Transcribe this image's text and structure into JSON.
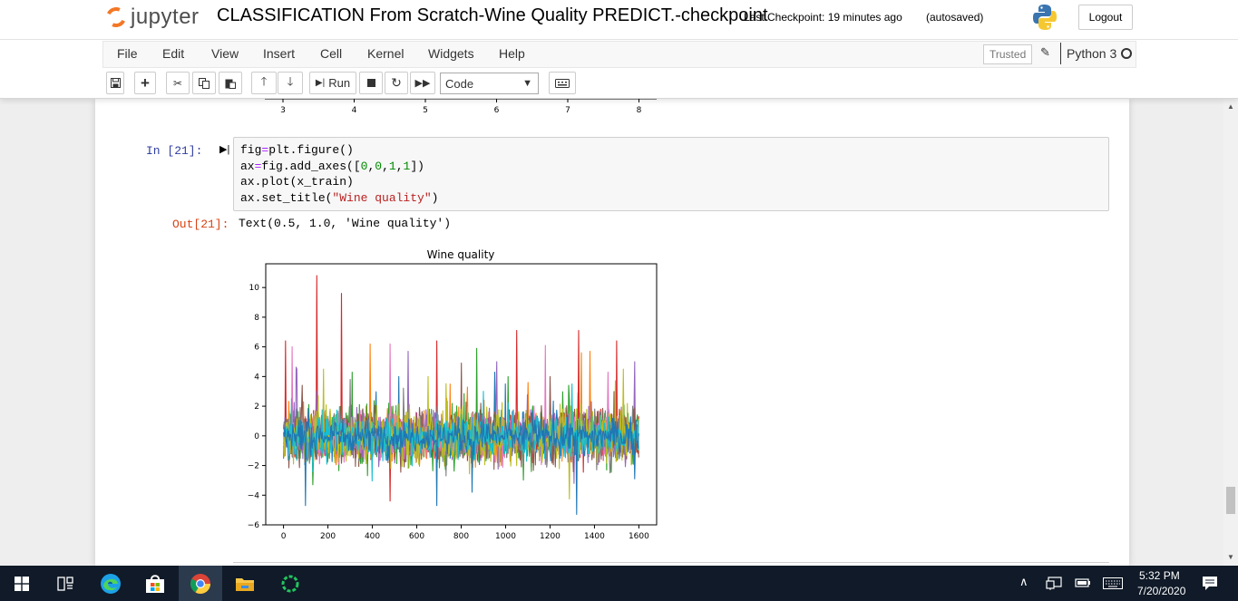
{
  "header": {
    "logo_text": "jupyter",
    "notebook_title": "CLASSIFICATION From Scratch-Wine Quality PREDICT.-checkpoint",
    "checkpoint": "Last Checkpoint: 19 minutes ago",
    "autosave": "(autosaved)",
    "logout_label": "Logout"
  },
  "menu": {
    "items": [
      "File",
      "Edit",
      "View",
      "Insert",
      "Cell",
      "Kernel",
      "Widgets",
      "Help"
    ],
    "trusted": "Trusted",
    "kernel": "Python 3"
  },
  "toolbar": {
    "run_label": "Run",
    "cell_type": "Code"
  },
  "cell": {
    "in_prompt": "In [21]:",
    "out_prompt": "Out[21]:",
    "output_text": "Text(0.5, 1.0, 'Wine quality')"
  },
  "previous_plot": {
    "x_ticks": [
      "3",
      "4",
      "5",
      "6",
      "7",
      "8"
    ]
  },
  "chart_data": {
    "type": "line",
    "title": "Wine quality",
    "xlabel": "",
    "ylabel": "",
    "xlim": [
      -80,
      1680
    ],
    "ylim": [
      -6,
      11.6
    ],
    "x_ticks": [
      0,
      200,
      400,
      600,
      800,
      1000,
      1200,
      1400,
      1600
    ],
    "y_ticks": [
      -6,
      -4,
      -2,
      0,
      2,
      4,
      6,
      8,
      10
    ],
    "x_tick_labels": [
      "0",
      "200",
      "400",
      "600",
      "800",
      "1000",
      "1200",
      "1400",
      "1600"
    ],
    "y_tick_labels": [
      "−6",
      "−4",
      "−2",
      "0",
      "2",
      "4",
      "6",
      "8",
      "10"
    ],
    "n_points": 1600,
    "series_colors": [
      "#1f77b4",
      "#ff7f0e",
      "#2ca02c",
      "#d62728",
      "#9467bd",
      "#8c564b",
      "#e377c2",
      "#7f7f7f",
      "#bcbd22",
      "#17becf",
      "#1f77b4"
    ],
    "series": [
      {
        "color": "#1f77b4",
        "peaks": [
          [
            520,
            4.0
          ],
          [
            950,
            4.3
          ],
          [
            1000,
            3.5
          ]
        ]
      },
      {
        "color": "#ff7f0e",
        "peaks": [
          [
            390,
            6.2
          ],
          [
            1100,
            3.6
          ],
          [
            1340,
            5.6
          ],
          [
            1380,
            5.7
          ]
        ]
      },
      {
        "color": "#2ca02c",
        "peaks": [
          [
            310,
            4.3
          ],
          [
            870,
            5.9
          ],
          [
            1010,
            4.0
          ]
        ]
      },
      {
        "color": "#d62728",
        "peaks": [
          [
            10,
            6.4
          ],
          [
            150,
            10.8
          ],
          [
            260,
            9.6
          ],
          [
            480,
            -4.4
          ],
          [
            690,
            6.4
          ],
          [
            1050,
            7.1
          ],
          [
            1330,
            7.1
          ],
          [
            1500,
            6.4
          ]
        ]
      },
      {
        "color": "#9467bd",
        "peaks": [
          [
            60,
            4.5
          ],
          [
            560,
            5.7
          ],
          [
            960,
            5.0
          ],
          [
            1580,
            5.0
          ]
        ]
      },
      {
        "color": "#8c564b",
        "peaks": [
          [
            800,
            4.9
          ],
          [
            1200,
            4.0
          ]
        ]
      },
      {
        "color": "#e377c2",
        "peaks": [
          [
            40,
            6.0
          ],
          [
            480,
            6.2
          ],
          [
            1180,
            6.1
          ],
          [
            1460,
            4.3
          ]
        ]
      },
      {
        "color": "#7f7f7f",
        "peaks": [
          [
            300,
            3.8
          ],
          [
            1470,
            -2.5
          ]
        ]
      },
      {
        "color": "#bcbd22",
        "peaks": [
          [
            180,
            4.5
          ],
          [
            650,
            4.0
          ],
          [
            1530,
            4.5
          ]
        ]
      },
      {
        "color": "#17becf",
        "peaks": [
          [
            1300,
            3.5
          ],
          [
            900,
            3.0
          ]
        ]
      },
      {
        "color": "#1f77b4",
        "peaks": [
          [
            100,
            -4.7
          ],
          [
            690,
            -4.7
          ],
          [
            850,
            -3.8
          ],
          [
            1320,
            -5.3
          ],
          [
            1580,
            -2.9
          ]
        ]
      }
    ]
  },
  "taskbar": {
    "time": "5:32 PM",
    "date": "7/20/2020"
  }
}
